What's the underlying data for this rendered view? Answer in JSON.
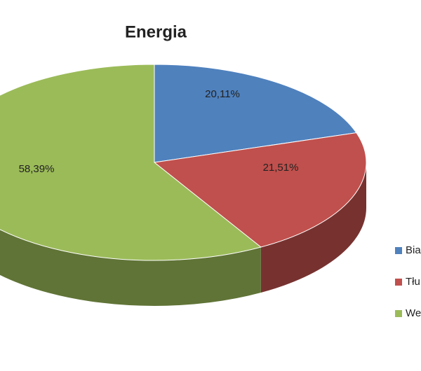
{
  "chart_data": {
    "type": "pie3d",
    "title": "Energia",
    "categories": [
      "Bia",
      "Tłu",
      "We"
    ],
    "values": [
      20.11,
      21.51,
      58.39
    ],
    "value_labels": [
      "20,11%",
      "21,51%",
      "58,39%"
    ],
    "colors": [
      "#4f81bd",
      "#c0504d",
      "#9bbb59"
    ],
    "legend": "right"
  }
}
